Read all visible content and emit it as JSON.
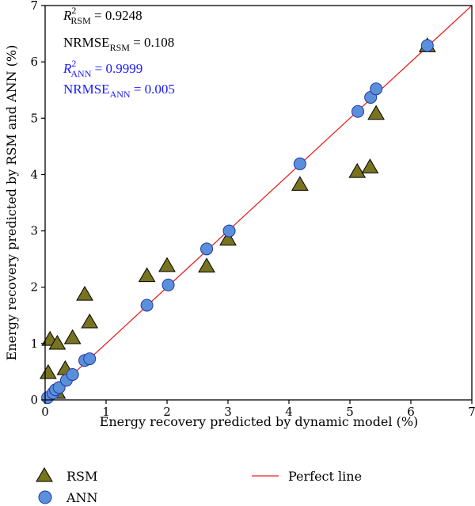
{
  "chart_data": {
    "type": "scatter",
    "xlabel": "Energy recovery predicted by dynamic model (%)",
    "ylabel": "Energy recovery predicted by RSM and ANN (%)",
    "xlim": [
      0,
      7
    ],
    "ylim": [
      0,
      7
    ],
    "xticks": [
      0,
      1,
      2,
      3,
      4,
      5,
      6,
      7
    ],
    "yticks": [
      0,
      1,
      2,
      3,
      4,
      5,
      6,
      7
    ],
    "grid": false,
    "legend_placement": "bottom",
    "annotations": {
      "rsm_r2": {
        "main": "R",
        "sup": "2",
        "sub": "RSM",
        "value": " = 0.9248",
        "color": "#000000"
      },
      "rsm_nrmse": {
        "main": "NRMSE",
        "sub": "RSM",
        "value": " = 0.108",
        "color": "#000000"
      },
      "ann_r2": {
        "main": "R",
        "sup": "2",
        "sub": "ANN",
        "value": " = 0.9999",
        "color": "#1a1aff"
      },
      "ann_nrmse": {
        "main": "NRMSE",
        "sub": "ANN",
        "value": " = 0.005",
        "color": "#1a1aff"
      }
    },
    "series": [
      {
        "name": "RSM",
        "marker": "triangle",
        "color": "#77731f",
        "points": [
          [
            0.05,
            0.48
          ],
          [
            0.08,
            1.07
          ],
          [
            0.2,
            1.0
          ],
          [
            0.2,
            0.13
          ],
          [
            0.33,
            0.55
          ],
          [
            0.45,
            1.1
          ],
          [
            0.65,
            1.87
          ],
          [
            0.73,
            1.38
          ],
          [
            1.67,
            2.2
          ],
          [
            2.0,
            2.38
          ],
          [
            2.65,
            2.37
          ],
          [
            3.0,
            2.85
          ],
          [
            4.18,
            3.82
          ],
          [
            5.12,
            4.05
          ],
          [
            5.33,
            4.13
          ],
          [
            5.43,
            5.08
          ],
          [
            6.27,
            6.28
          ]
        ]
      },
      {
        "name": "ANN",
        "marker": "circle",
        "color": "#5b8fdc",
        "points": [
          [
            0.04,
            0.04
          ],
          [
            0.13,
            0.12
          ],
          [
            0.17,
            0.18
          ],
          [
            0.23,
            0.22
          ],
          [
            0.35,
            0.35
          ],
          [
            0.45,
            0.45
          ],
          [
            0.65,
            0.7
          ],
          [
            0.73,
            0.73
          ],
          [
            1.67,
            1.68
          ],
          [
            2.02,
            2.04
          ],
          [
            2.65,
            2.68
          ],
          [
            3.02,
            3.0
          ],
          [
            4.18,
            4.19
          ],
          [
            5.13,
            5.12
          ],
          [
            5.34,
            5.37
          ],
          [
            5.43,
            5.52
          ],
          [
            6.27,
            6.29
          ]
        ]
      },
      {
        "name": "Perfect line",
        "marker": "line",
        "color": "#e8251f",
        "points": [
          [
            0,
            0
          ],
          [
            7,
            7
          ]
        ]
      }
    ]
  }
}
